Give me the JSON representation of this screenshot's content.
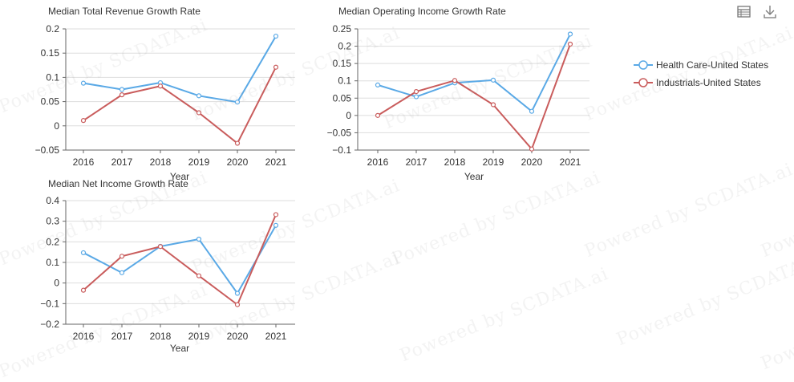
{
  "colors": {
    "health_care": "#5aa9e6",
    "industrials": "#c95c5c",
    "axis": "#666666",
    "grid": "#dddddd"
  },
  "toolbar": {
    "table_icon": "table-view-icon",
    "download_icon": "download-icon"
  },
  "legend": {
    "items": [
      {
        "label": "Health Care-United States",
        "color": "#5aa9e6"
      },
      {
        "label": "Industrials-United States",
        "color": "#c95c5c"
      }
    ]
  },
  "watermark": {
    "text": "Powered by SCDATA.ai"
  },
  "chart_data": [
    {
      "type": "line",
      "title": "Median Total Revenue Growth Rate",
      "xlabel": "Year",
      "ylabel": "",
      "categories": [
        "2016",
        "2017",
        "2018",
        "2019",
        "2020",
        "2021"
      ],
      "ylim": [
        -0.05,
        0.2
      ],
      "yticks": [
        -0.05,
        0,
        0.05,
        0.1,
        0.15,
        0.2
      ],
      "ytick_labels": [
        "−0.05",
        "0",
        "0.05",
        "0.1",
        "0.15",
        "0.2"
      ],
      "grid": true,
      "series": [
        {
          "name": "Health Care-United States",
          "values": [
            0.088,
            0.075,
            0.089,
            0.062,
            0.049,
            0.185
          ]
        },
        {
          "name": "Industrials-United States",
          "values": [
            0.011,
            0.064,
            0.082,
            0.027,
            -0.036,
            0.121
          ]
        }
      ]
    },
    {
      "type": "line",
      "title": "Median Operating Income Growth Rate",
      "xlabel": "Year",
      "ylabel": "",
      "categories": [
        "2016",
        "2017",
        "2018",
        "2019",
        "2020",
        "2021"
      ],
      "ylim": [
        -0.1,
        0.25
      ],
      "yticks": [
        -0.1,
        -0.05,
        0,
        0.05,
        0.1,
        0.15,
        0.2,
        0.25
      ],
      "ytick_labels": [
        "−0.1",
        "−0.05",
        "0",
        "0.05",
        "0.1",
        "0.15",
        "0.2",
        "0.25"
      ],
      "grid": true,
      "series": [
        {
          "name": "Health Care-United States",
          "values": [
            0.088,
            0.054,
            0.094,
            0.102,
            0.012,
            0.235
          ]
        },
        {
          "name": "Industrials-United States",
          "values": [
            0.0,
            0.069,
            0.101,
            0.031,
            -0.097,
            0.206
          ]
        }
      ]
    },
    {
      "type": "line",
      "title": "Median Net Income Growth Rate",
      "xlabel": "Year",
      "ylabel": "",
      "categories": [
        "2016",
        "2017",
        "2018",
        "2019",
        "2020",
        "2021"
      ],
      "ylim": [
        -0.2,
        0.4
      ],
      "yticks": [
        -0.2,
        -0.1,
        0,
        0.1,
        0.2,
        0.3,
        0.4
      ],
      "ytick_labels": [
        "−0.2",
        "−0.1",
        "0",
        "0.1",
        "0.2",
        "0.3",
        "0.4"
      ],
      "grid": true,
      "series": [
        {
          "name": "Health Care-United States",
          "values": [
            0.147,
            0.05,
            0.178,
            0.213,
            -0.05,
            0.28
          ]
        },
        {
          "name": "Industrials-United States",
          "values": [
            -0.035,
            0.13,
            0.177,
            0.035,
            -0.105,
            0.332
          ]
        }
      ]
    }
  ]
}
